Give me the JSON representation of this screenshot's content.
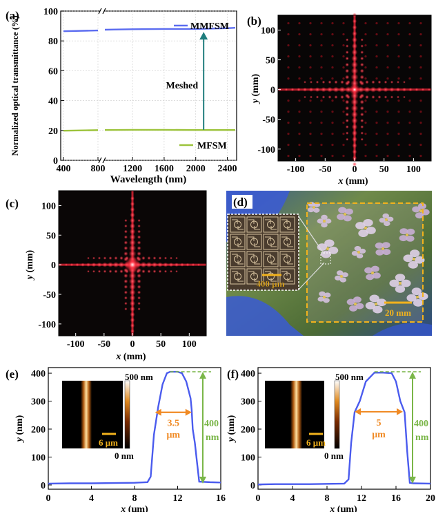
{
  "panels": {
    "a": {
      "label": "(a)"
    },
    "b": {
      "label": "(b)"
    },
    "c": {
      "label": "(c)"
    },
    "d": {
      "label": "(d)"
    },
    "e": {
      "label": "(e)"
    },
    "f": {
      "label": "(f)"
    }
  },
  "colors": {
    "mmfsm": "#5b6cf0",
    "mfsm": "#9cc33b",
    "arrow": "#1f7d7d",
    "orange": "#f08a24",
    "green": "#7ab648",
    "profile": "#4a5bee"
  },
  "chart_data": [
    {
      "panel": "a",
      "type": "line",
      "xlabel": "Wavelength (nm)",
      "ylabel": "Normalized optical transmittance (%)",
      "x_ticks": [
        "400",
        "800",
        "1200",
        "1600",
        "2000",
        "2400"
      ],
      "y_ticks": [
        "0",
        "20",
        "40",
        "60",
        "80",
        "100"
      ],
      "xlim": [
        400,
        2500
      ],
      "ylim": [
        0,
        100
      ],
      "axis_break_x": 850,
      "series": [
        {
          "name": "MMFSM",
          "x": [
            400,
            800,
            850,
            1200,
            1600,
            2000,
            2400,
            2500
          ],
          "y": [
            86.5,
            87,
            87.5,
            87.8,
            88,
            88,
            88.5,
            88.8
          ]
        },
        {
          "name": "MFSM",
          "x": [
            400,
            800,
            850,
            1200,
            1600,
            2000,
            2400,
            2500
          ],
          "y": [
            19.8,
            20.2,
            20.3,
            20.4,
            20.4,
            20.3,
            20.3,
            20.3
          ]
        }
      ],
      "annotation": {
        "text": "Meshed",
        "x": 2100,
        "y_from": 20.5,
        "y_to": 86
      }
    },
    {
      "panel": "b",
      "type": "heatmap",
      "xlabel_var": "x",
      "xlabel_unit": " (mm)",
      "ylabel_var": "y",
      "ylabel_unit": " (mm)",
      "x_ticks": [
        "-100",
        "-50",
        "0",
        "50",
        "100"
      ],
      "y_ticks": [
        "100",
        "50",
        "0",
        "-50",
        "-100"
      ],
      "xlim": [
        -130,
        130
      ],
      "ylim": [
        -120,
        125
      ]
    },
    {
      "panel": "c",
      "type": "heatmap",
      "xlabel_var": "x",
      "xlabel_unit": " (mm)",
      "ylabel_var": "y",
      "ylabel_unit": " (mm)",
      "x_ticks": [
        "-100",
        "-50",
        "0",
        "50",
        "100"
      ],
      "y_ticks": [
        "100",
        "50",
        "0",
        "-50",
        "-100"
      ],
      "xlim": [
        -130,
        130
      ],
      "ylim": [
        -120,
        125
      ]
    },
    {
      "panel": "e",
      "type": "line",
      "xlabel_var": "x",
      "xlabel_unit": " (μm)",
      "ylabel_var": "y",
      "ylabel_unit": " (nm)",
      "x_ticks": [
        "0",
        "4",
        "8",
        "12",
        "16"
      ],
      "y_ticks": [
        "0",
        "100",
        "200",
        "300",
        "400"
      ],
      "xlim": [
        0,
        16
      ],
      "ylim": [
        -15,
        420
      ],
      "series": [
        {
          "x": [
            0,
            2,
            4,
            6,
            8,
            9.2,
            9.5,
            9.8,
            10.2,
            10.6,
            11.0,
            11.3,
            12.0,
            12.4,
            12.8,
            13.2,
            13.3,
            13.4,
            13.6,
            13.8,
            14.0,
            15,
            16
          ],
          "y": [
            5,
            6,
            6,
            7,
            8,
            10,
            30,
            180,
            280,
            360,
            400,
            405,
            405,
            400,
            370,
            310,
            270,
            200,
            150,
            80,
            12,
            10,
            9
          ]
        }
      ],
      "annotations": {
        "width_label": "3.5",
        "width_unit": "μm",
        "height_label": "400",
        "height_unit": "nm",
        "width_from": 9.9,
        "width_to": 13.3,
        "width_at": 260
      },
      "inset": {
        "top_label": "500 nm",
        "bottom_label": "0 nm",
        "scale_label": "6 μm"
      }
    },
    {
      "panel": "f",
      "type": "line",
      "xlabel_var": "x",
      "xlabel_unit": " (μm)",
      "ylabel_var": "y",
      "ylabel_unit": " (nm)",
      "x_ticks": [
        "0",
        "4",
        "8",
        "12",
        "16",
        "20"
      ],
      "y_ticks": [
        "0",
        "100",
        "200",
        "300",
        "400"
      ],
      "xlim": [
        0,
        20
      ],
      "ylim": [
        -15,
        420
      ],
      "series": [
        {
          "x": [
            0,
            2,
            4,
            6,
            8,
            10,
            10.5,
            10.8,
            11.2,
            11.8,
            12.5,
            13.5,
            14.5,
            15.5,
            16,
            16.5,
            17.0,
            17.3,
            17.6,
            18,
            20
          ],
          "y": [
            2,
            3,
            3,
            3,
            4,
            5,
            20,
            150,
            260,
            300,
            370,
            402,
            402,
            400,
            370,
            300,
            260,
            120,
            8,
            6,
            5
          ]
        }
      ],
      "annotations": {
        "width_label": "5",
        "width_unit": "μm",
        "height_label": "400",
        "height_unit": "nm",
        "width_from": 11.2,
        "width_to": 16.8,
        "width_at": 262
      },
      "inset": {
        "top_label": "500 nm",
        "bottom_label": "0 nm",
        "scale_label": "6 μm"
      }
    }
  ],
  "photo": {
    "inset_scale": "400 μm",
    "main_scale": "20 mm"
  }
}
